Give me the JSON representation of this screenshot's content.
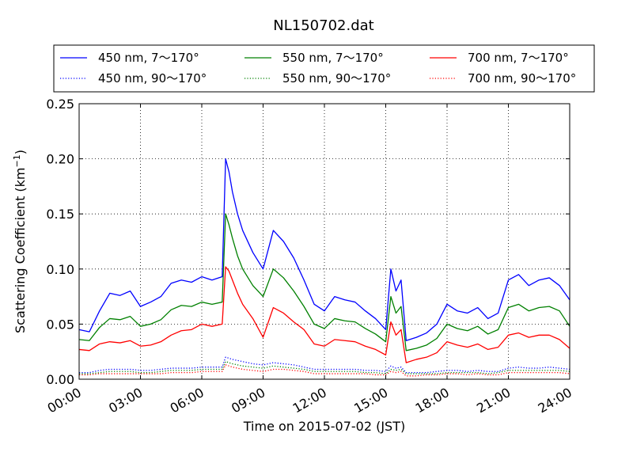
{
  "chart_data": {
    "type": "line",
    "title": "NL150702.dat",
    "xlabel": "Time on 2015-07-02 (JST)",
    "ylabel": "Scattering Coefficient (km",
    "ylabel_sup": "−1",
    "ylabel_close": ")",
    "xlim": [
      "2015-07-02 00:00",
      "2015-07-03 00:00"
    ],
    "ylim": [
      0.0,
      0.25
    ],
    "x_ticks": [
      "00:00",
      "03:00",
      "06:00",
      "09:00",
      "12:00",
      "15:00",
      "18:00",
      "21:00",
      "24:00"
    ],
    "y_ticks": [
      "0.00",
      "0.05",
      "0.10",
      "0.15",
      "0.20",
      "0.25"
    ],
    "grid": true,
    "grid_style": "dotted",
    "legend_position": "above plot, 3 columns",
    "x_times": [
      "00:00",
      "00:30",
      "01:00",
      "01:30",
      "02:00",
      "02:30",
      "03:00",
      "03:30",
      "04:00",
      "04:30",
      "05:00",
      "05:30",
      "06:00",
      "06:30",
      "07:00",
      "07:10",
      "07:20",
      "07:30",
      "07:45",
      "08:00",
      "08:30",
      "09:00",
      "09:30",
      "10:00",
      "10:30",
      "11:00",
      "11:30",
      "12:00",
      "12:30",
      "13:00",
      "13:30",
      "14:00",
      "14:30",
      "15:00",
      "15:15",
      "15:30",
      "15:45",
      "16:00",
      "16:30",
      "17:00",
      "17:30",
      "18:00",
      "18:30",
      "19:00",
      "19:30",
      "20:00",
      "20:30",
      "21:00",
      "21:30",
      "22:00",
      "22:30",
      "23:00",
      "23:30",
      "24:00"
    ],
    "series": [
      {
        "name": "450 nm, 7～170°",
        "color": "#0000ff",
        "style": "solid",
        "values": [
          0.045,
          0.043,
          0.062,
          0.078,
          0.076,
          0.08,
          0.066,
          0.07,
          0.075,
          0.087,
          0.09,
          0.088,
          0.093,
          0.09,
          0.093,
          0.2,
          0.188,
          0.17,
          0.15,
          0.135,
          0.115,
          0.1,
          0.135,
          0.125,
          0.11,
          0.09,
          0.068,
          0.062,
          0.075,
          0.072,
          0.07,
          0.062,
          0.055,
          0.045,
          0.1,
          0.08,
          0.09,
          0.035,
          0.038,
          0.042,
          0.05,
          0.068,
          0.062,
          0.06,
          0.065,
          0.055,
          0.06,
          0.09,
          0.095,
          0.085,
          0.09,
          0.092,
          0.085,
          0.072
        ]
      },
      {
        "name": "450 nm, 90～170°",
        "color": "#0000ff",
        "style": "dotted",
        "values": [
          0.006,
          0.006,
          0.008,
          0.009,
          0.009,
          0.009,
          0.008,
          0.008,
          0.009,
          0.01,
          0.01,
          0.01,
          0.011,
          0.011,
          0.011,
          0.02,
          0.019,
          0.018,
          0.017,
          0.016,
          0.014,
          0.013,
          0.015,
          0.014,
          0.013,
          0.011,
          0.009,
          0.009,
          0.009,
          0.009,
          0.009,
          0.008,
          0.008,
          0.007,
          0.012,
          0.01,
          0.011,
          0.006,
          0.006,
          0.006,
          0.007,
          0.008,
          0.008,
          0.007,
          0.008,
          0.007,
          0.007,
          0.01,
          0.011,
          0.01,
          0.01,
          0.011,
          0.01,
          0.009
        ]
      },
      {
        "name": "550 nm, 7～170°",
        "color": "#008000",
        "style": "solid",
        "values": [
          0.036,
          0.035,
          0.047,
          0.055,
          0.054,
          0.057,
          0.048,
          0.05,
          0.054,
          0.063,
          0.067,
          0.066,
          0.07,
          0.068,
          0.07,
          0.15,
          0.14,
          0.128,
          0.112,
          0.1,
          0.085,
          0.075,
          0.1,
          0.092,
          0.08,
          0.066,
          0.05,
          0.046,
          0.055,
          0.053,
          0.052,
          0.046,
          0.041,
          0.034,
          0.075,
          0.06,
          0.066,
          0.026,
          0.028,
          0.031,
          0.037,
          0.05,
          0.046,
          0.044,
          0.048,
          0.041,
          0.045,
          0.065,
          0.068,
          0.062,
          0.065,
          0.066,
          0.062,
          0.048
        ]
      },
      {
        "name": "550 nm, 90～170°",
        "color": "#008000",
        "style": "dotted",
        "values": [
          0.005,
          0.005,
          0.006,
          0.007,
          0.007,
          0.007,
          0.006,
          0.006,
          0.007,
          0.008,
          0.008,
          0.008,
          0.009,
          0.009,
          0.009,
          0.016,
          0.015,
          0.014,
          0.013,
          0.012,
          0.011,
          0.01,
          0.012,
          0.011,
          0.01,
          0.009,
          0.007,
          0.007,
          0.007,
          0.007,
          0.007,
          0.006,
          0.006,
          0.005,
          0.009,
          0.008,
          0.009,
          0.005,
          0.005,
          0.005,
          0.005,
          0.006,
          0.006,
          0.006,
          0.006,
          0.005,
          0.006,
          0.008,
          0.008,
          0.008,
          0.008,
          0.008,
          0.008,
          0.007
        ]
      },
      {
        "name": "700 nm, 7～170°",
        "color": "#ff0000",
        "style": "solid",
        "values": [
          0.027,
          0.026,
          0.032,
          0.034,
          0.033,
          0.035,
          0.03,
          0.031,
          0.034,
          0.04,
          0.044,
          0.045,
          0.05,
          0.048,
          0.05,
          0.102,
          0.098,
          0.09,
          0.078,
          0.068,
          0.055,
          0.038,
          0.065,
          0.06,
          0.052,
          0.045,
          0.032,
          0.03,
          0.036,
          0.035,
          0.034,
          0.03,
          0.027,
          0.022,
          0.052,
          0.04,
          0.045,
          0.015,
          0.018,
          0.02,
          0.024,
          0.034,
          0.031,
          0.029,
          0.032,
          0.027,
          0.029,
          0.04,
          0.042,
          0.038,
          0.04,
          0.04,
          0.036,
          0.028
        ]
      },
      {
        "name": "700 nm, 90～170°",
        "color": "#ff0000",
        "style": "dotted",
        "values": [
          0.004,
          0.004,
          0.005,
          0.005,
          0.005,
          0.005,
          0.005,
          0.005,
          0.005,
          0.006,
          0.006,
          0.006,
          0.007,
          0.007,
          0.007,
          0.013,
          0.012,
          0.011,
          0.01,
          0.009,
          0.008,
          0.007,
          0.009,
          0.009,
          0.008,
          0.007,
          0.005,
          0.005,
          0.005,
          0.005,
          0.005,
          0.005,
          0.004,
          0.004,
          0.007,
          0.006,
          0.007,
          0.003,
          0.003,
          0.004,
          0.004,
          0.005,
          0.005,
          0.004,
          0.005,
          0.004,
          0.004,
          0.006,
          0.006,
          0.006,
          0.006,
          0.006,
          0.006,
          0.005
        ]
      }
    ]
  }
}
